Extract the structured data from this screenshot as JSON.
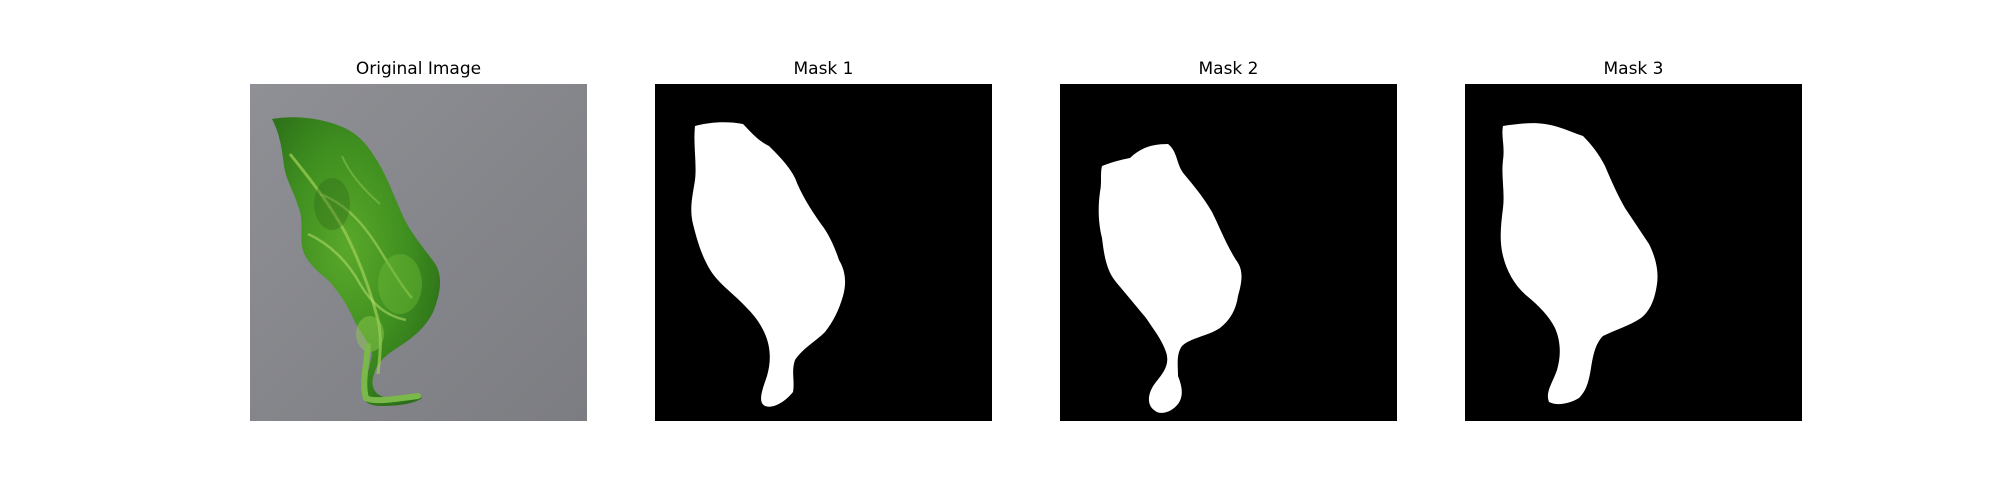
{
  "panels": [
    {
      "title": "Original Image",
      "kind": "photo",
      "subject": "leaf"
    },
    {
      "title": "Mask 1",
      "kind": "mask"
    },
    {
      "title": "Mask 2",
      "kind": "mask"
    },
    {
      "title": "Mask 3",
      "kind": "mask"
    }
  ],
  "colors": {
    "background": "#ffffff",
    "mask_foreground": "#ffffff",
    "mask_background": "#000000",
    "photo_background": "#8a8b90",
    "leaf_dark": "#2f7a1d",
    "leaf_mid": "#4f9b24",
    "leaf_light": "#8fc54a"
  }
}
